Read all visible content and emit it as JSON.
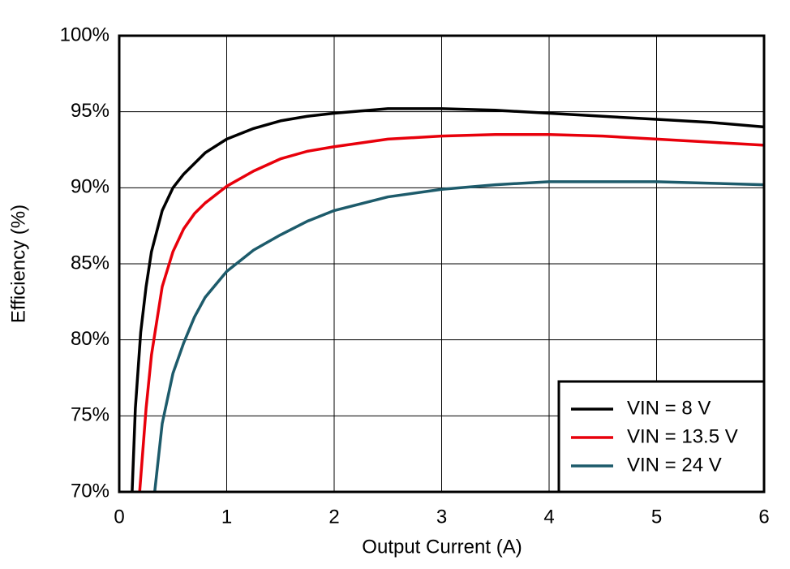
{
  "chart_data": {
    "type": "line",
    "xlabel": "Output Current (A)",
    "ylabel": "Efficiency (%)",
    "xlim": [
      0,
      6
    ],
    "ylim": [
      70,
      100
    ],
    "xticks": [
      0,
      1,
      2,
      3,
      4,
      5,
      6
    ],
    "yticks": [
      {
        "value": 70,
        "label": "70%"
      },
      {
        "value": 75,
        "label": "75%"
      },
      {
        "value": 80,
        "label": "80%"
      },
      {
        "value": 85,
        "label": "85%"
      },
      {
        "value": 90,
        "label": "90%"
      },
      {
        "value": 95,
        "label": "95%"
      },
      {
        "value": 100,
        "label": "100%"
      }
    ],
    "grid": true,
    "legend": "lower right",
    "series": [
      {
        "name": "VIN = 8 V",
        "color": "#000000",
        "x": [
          0.12,
          0.15,
          0.2,
          0.25,
          0.3,
          0.4,
          0.5,
          0.6,
          0.7,
          0.8,
          1,
          1.25,
          1.5,
          1.75,
          2,
          2.5,
          3,
          3.5,
          4,
          4.5,
          5,
          5.5,
          6
        ],
        "values": [
          70,
          75.5,
          80.5,
          83.5,
          85.8,
          88.5,
          90.0,
          90.9,
          91.6,
          92.3,
          93.2,
          93.9,
          94.4,
          94.7,
          94.9,
          95.2,
          95.2,
          95.1,
          94.9,
          94.7,
          94.5,
          94.3,
          94.0
        ]
      },
      {
        "name": "VIN = 13.5 V",
        "color": "#e8000b",
        "x": [
          0.19,
          0.25,
          0.3,
          0.4,
          0.5,
          0.6,
          0.7,
          0.8,
          1,
          1.25,
          1.5,
          1.75,
          2,
          2.5,
          3,
          3.5,
          4,
          4.5,
          5,
          5.5,
          6
        ],
        "values": [
          70,
          75.5,
          79,
          83.5,
          85.8,
          87.3,
          88.3,
          89.0,
          90.1,
          91.1,
          91.9,
          92.4,
          92.7,
          93.2,
          93.4,
          93.5,
          93.5,
          93.4,
          93.2,
          93.0,
          92.8
        ]
      },
      {
        "name": "VIN = 24 V",
        "color": "#1d5b6b",
        "x": [
          0.33,
          0.4,
          0.5,
          0.6,
          0.7,
          0.8,
          1,
          1.25,
          1.5,
          1.75,
          2,
          2.5,
          3,
          3.5,
          4,
          4.5,
          5,
          5.5,
          6
        ],
        "values": [
          70,
          74.5,
          77.8,
          79.8,
          81.5,
          82.8,
          84.5,
          85.9,
          86.9,
          87.8,
          88.5,
          89.4,
          89.9,
          90.2,
          90.4,
          90.4,
          90.4,
          90.3,
          90.2
        ]
      }
    ]
  }
}
